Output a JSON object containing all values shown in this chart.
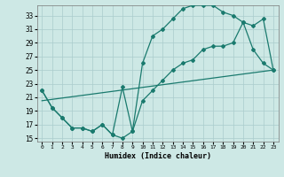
{
  "xlabel": "Humidex (Indice chaleur)",
  "bg_color": "#cde8e5",
  "grid_color": "#aacccc",
  "line_color": "#1a7a6e",
  "xlim": [
    -0.5,
    23.5
  ],
  "ylim": [
    14.5,
    34.5
  ],
  "xticks": [
    0,
    1,
    2,
    3,
    4,
    5,
    6,
    7,
    8,
    9,
    10,
    11,
    12,
    13,
    14,
    15,
    16,
    17,
    18,
    19,
    20,
    21,
    22,
    23
  ],
  "yticks": [
    15,
    17,
    19,
    21,
    23,
    25,
    27,
    29,
    31,
    33
  ],
  "line1_x": [
    0,
    1,
    2,
    3,
    4,
    5,
    6,
    7,
    8,
    9,
    10,
    11,
    12,
    13,
    14,
    15,
    16,
    17,
    18,
    19,
    20,
    21,
    22,
    23
  ],
  "line1_y": [
    22.0,
    19.5,
    18.0,
    16.5,
    16.5,
    16.0,
    17.0,
    15.5,
    15.0,
    16.0,
    20.5,
    22.0,
    23.5,
    25.0,
    26.0,
    26.5,
    28.0,
    28.5,
    28.5,
    29.0,
    32.0,
    31.5,
    32.5,
    25.0
  ],
  "line2_x": [
    0,
    1,
    2,
    3,
    4,
    5,
    6,
    7,
    8,
    9,
    10,
    11,
    12,
    13,
    14,
    15,
    16,
    17,
    18,
    19,
    20,
    21,
    22,
    23
  ],
  "line2_y": [
    22.0,
    19.5,
    18.0,
    16.5,
    16.5,
    16.0,
    17.0,
    15.5,
    22.5,
    16.0,
    26.0,
    30.0,
    31.0,
    32.5,
    34.0,
    34.5,
    34.5,
    34.5,
    33.5,
    33.0,
    32.0,
    28.0,
    26.0,
    25.0
  ],
  "line3_x": [
    0,
    23
  ],
  "line3_y": [
    20.5,
    25.0
  ]
}
